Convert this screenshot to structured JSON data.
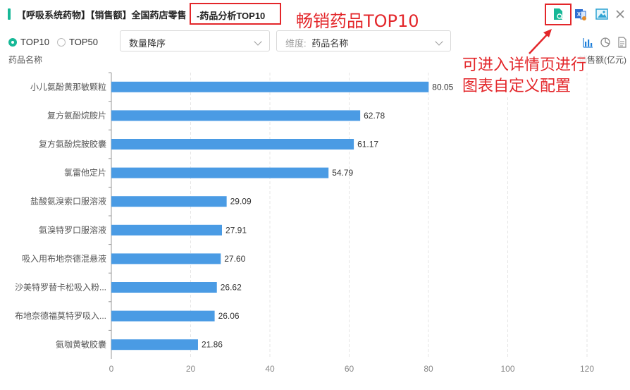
{
  "header": {
    "title_main": "【呼吸系统药物】【销售额】全国药店零售",
    "title_highlight": "-药品分析TOP10",
    "annotation_top": "畅销药品TOP10",
    "annotation_right_line1": "可进入详情页进行",
    "annotation_right_line2": "图表自定义配置",
    "icons": [
      "detail-page-icon",
      "excel-export-icon",
      "image-export-icon",
      "close-icon"
    ]
  },
  "controls": {
    "radio_top10": "TOP10",
    "radio_top50": "TOP50",
    "selected_radio": "TOP10",
    "sort_select": "数量降序",
    "dimension_label": "维度:",
    "dimension_value": "药品名称",
    "view_icons": [
      "bar-chart-icon",
      "pie-chart-icon",
      "table-icon"
    ]
  },
  "colors": {
    "accent": "#17b897",
    "bar": "#4a9be4",
    "annotation": "#e3262a"
  },
  "chart_data": {
    "type": "bar",
    "orientation": "horizontal",
    "ylabel": "药品名称",
    "xlabel": "销售额(亿元)",
    "xlim": [
      0,
      120
    ],
    "xticks": [
      0,
      20,
      40,
      60,
      80,
      100,
      120
    ],
    "grid": true,
    "categories": [
      "小儿氨酚黄那敏颗粒",
      "复方氨酚烷胺片",
      "复方氨酚烷胺胶囊",
      "氯雷他定片",
      "盐酸氨溴索口服溶液",
      "氨溴特罗口服溶液",
      "吸入用布地奈德混悬液",
      "沙美特罗替卡松吸入粉...",
      "布地奈德福莫特罗吸入...",
      "氨咖黄敏胶囊"
    ],
    "values": [
      80.05,
      62.78,
      61.17,
      54.79,
      29.09,
      27.91,
      27.6,
      26.62,
      26.06,
      21.86
    ],
    "value_labels": [
      "80.05",
      "62.78",
      "61.17",
      "54.79",
      "29.09",
      "27.91",
      "27.60",
      "26.62",
      "26.06",
      "21.86"
    ]
  }
}
